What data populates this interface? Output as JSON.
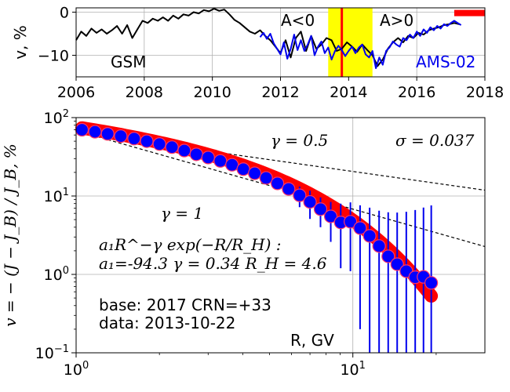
{
  "chart_data": [
    {
      "type": "line",
      "ylabel": "v, %",
      "xlim": [
        2006,
        2018
      ],
      "ylim": [
        -15,
        1
      ],
      "x_ticks": [
        "2006",
        "2008",
        "2010",
        "2012",
        "2014",
        "2016",
        "2018"
      ],
      "y_ticks": [
        "0",
        "−10"
      ],
      "grid": true,
      "annotations": {
        "left": "GSM",
        "neg": "A<0",
        "pos": "A>0",
        "ams": "AMS-02"
      },
      "shaded_span": {
        "from": 2013.4,
        "to": 2014.7,
        "color": "#ffff00"
      },
      "marker_line": {
        "x": 2013.8,
        "color": "#ff0000"
      },
      "base_bar": {
        "from": 2017.1,
        "to": 2018.0,
        "y": -0.2,
        "color": "#ff0000"
      },
      "series": [
        {
          "name": "GSM",
          "color": "#000000",
          "x": [
            2006.0,
            2006.15,
            2006.3,
            2006.45,
            2006.6,
            2006.75,
            2006.9,
            2007.05,
            2007.2,
            2007.35,
            2007.5,
            2007.65,
            2007.8,
            2007.95,
            2008.1,
            2008.25,
            2008.4,
            2008.55,
            2008.7,
            2008.85,
            2009.0,
            2009.15,
            2009.3,
            2009.45,
            2009.6,
            2009.75,
            2009.9,
            2010.05,
            2010.2,
            2010.35,
            2010.5,
            2010.65,
            2010.8,
            2010.95,
            2011.1,
            2011.25,
            2011.4,
            2011.55,
            2011.7,
            2011.85,
            2012.0,
            2012.15,
            2012.3,
            2012.45,
            2012.6,
            2012.75,
            2012.9,
            2013.05,
            2013.2,
            2013.35,
            2013.5,
            2013.65,
            2013.8,
            2013.95,
            2014.1,
            2014.25,
            2014.4,
            2014.55,
            2014.7,
            2014.85,
            2015.0,
            2015.15,
            2015.3,
            2015.45,
            2015.6,
            2015.75,
            2015.9,
            2016.05,
            2016.2,
            2016.35,
            2016.5,
            2016.65,
            2016.8,
            2016.95,
            2017.1,
            2017.25
          ],
          "y": [
            -6.5,
            -4.5,
            -5.5,
            -3.8,
            -4.8,
            -4.0,
            -5.0,
            -4.2,
            -3.2,
            -5.0,
            -3.0,
            -6.0,
            -4.0,
            -2.0,
            -2.5,
            -1.5,
            -2.0,
            -1.2,
            -2.0,
            -0.8,
            -1.5,
            -0.5,
            -0.8,
            0.0,
            -0.3,
            0.5,
            0.2,
            0.8,
            0.3,
            0.6,
            -0.5,
            -1.8,
            -2.5,
            -3.5,
            -4.5,
            -5.0,
            -4.2,
            -5.5,
            -6.5,
            -8.0,
            -9.5,
            -6.5,
            -10.5,
            -6.0,
            -4.5,
            -9.0,
            -5.5,
            -8.5,
            -7.5,
            -6.0,
            -6.5,
            -9.0,
            -8.5,
            -7.0,
            -8.0,
            -9.2,
            -7.5,
            -8.8,
            -10.0,
            -12.5,
            -11.0,
            -8.5,
            -7.0,
            -6.0,
            -7.0,
            -5.5,
            -6.0,
            -4.8,
            -5.2,
            -4.2,
            -3.8,
            -3.5,
            -3.0,
            -2.8,
            -2.5,
            -2.8
          ]
        },
        {
          "name": "AMS-02",
          "color": "#0000ee",
          "x": [
            2011.4,
            2011.5,
            2011.6,
            2011.7,
            2011.8,
            2011.9,
            2012.0,
            2012.1,
            2012.2,
            2012.3,
            2012.4,
            2012.5,
            2012.6,
            2012.7,
            2012.8,
            2012.9,
            2013.0,
            2013.1,
            2013.2,
            2013.3,
            2013.4,
            2013.5,
            2013.6,
            2013.7,
            2013.8,
            2013.9,
            2014.0,
            2014.1,
            2014.2,
            2014.3,
            2014.4,
            2014.5,
            2014.6,
            2014.7,
            2014.8,
            2014.9,
            2015.0,
            2015.1,
            2015.2,
            2015.3,
            2015.4,
            2015.5,
            2015.6,
            2015.7,
            2015.8,
            2015.9,
            2016.0,
            2016.1,
            2016.2,
            2016.3,
            2016.4,
            2016.5,
            2016.6,
            2016.7,
            2016.8,
            2016.9,
            2017.0,
            2017.1,
            2017.2,
            2017.3
          ],
          "y": [
            -5.8,
            -4.8,
            -6.2,
            -5.0,
            -7.2,
            -8.5,
            -9.8,
            -7.0,
            -10.8,
            -8.5,
            -5.2,
            -8.8,
            -6.5,
            -9.0,
            -7.5,
            -5.5,
            -10.0,
            -8.0,
            -6.8,
            -9.5,
            -8.2,
            -11.0,
            -9.0,
            -7.8,
            -8.8,
            -10.2,
            -9.0,
            -8.0,
            -9.5,
            -8.2,
            -7.5,
            -9.8,
            -10.5,
            -9.0,
            -13.0,
            -10.5,
            -12.2,
            -9.0,
            -8.2,
            -6.8,
            -7.5,
            -8.0,
            -6.0,
            -6.5,
            -5.2,
            -6.0,
            -4.5,
            -5.5,
            -4.0,
            -4.8,
            -3.5,
            -4.2,
            -3.2,
            -3.8,
            -2.8,
            -3.2,
            -2.5,
            -2.0,
            -2.5,
            -3.0
          ]
        }
      ]
    },
    {
      "type": "scatter",
      "xlabel": "R, GV",
      "ylabel": "v = − (J − J_B) / J_B, %",
      "xscale": "log",
      "yscale": "log",
      "xlim": [
        1,
        30
      ],
      "ylim": [
        0.1,
        100
      ],
      "x_ticks": [
        {
          "value": 1,
          "base": "10",
          "exp": "0"
        },
        {
          "value": 10,
          "base": "10",
          "exp": "1"
        }
      ],
      "y_ticks": [
        {
          "value": 0.1,
          "base": "10",
          "exp": "−1"
        },
        {
          "value": 1,
          "base": "10",
          "exp": "0"
        },
        {
          "value": 10,
          "base": "10",
          "exp": "1"
        },
        {
          "value": 100,
          "base": "10",
          "exp": "2"
        }
      ],
      "grid": true,
      "annotations": {
        "gamma_half": "γ = 0.5",
        "sigma": "σ = 0.037",
        "gamma_one": "γ = 1",
        "fit_formula": "a₁R^−γ exp(−R/R_H) :",
        "fit_params": "a₁=-94.3  γ = 0.34  R_H =  4.6",
        "base_line": "base: 2017   CRN=+33",
        "data_line": "data: 2013-10-22"
      },
      "reference_lines": [
        {
          "label": "γ = 0.5",
          "slope": -0.5,
          "x0": 1,
          "y0": 65,
          "style": "dashed"
        },
        {
          "label": "γ = 1",
          "slope": -1.0,
          "x0": 1,
          "y0": 68,
          "style": "dashed"
        }
      ],
      "fit": {
        "a1": -94.3,
        "gamma": 0.34,
        "R_H": 4.6,
        "color": "#ff0000"
      },
      "series": [
        {
          "marker_color": "#0000ff",
          "edge_color": "#ff3366",
          "x": [
            1.05,
            1.17,
            1.3,
            1.45,
            1.62,
            1.8,
            2.0,
            2.22,
            2.46,
            2.72,
            3.0,
            3.32,
            3.66,
            4.02,
            4.42,
            4.86,
            5.34,
            5.86,
            6.42,
            7.0,
            7.64,
            8.32,
            9.04,
            9.8,
            10.62,
            11.5,
            12.44,
            13.42,
            14.46,
            15.6,
            16.8,
            18.0,
            19.2
          ],
          "y": [
            70,
            66,
            62,
            58,
            54,
            50,
            46,
            42,
            38,
            34,
            31,
            28,
            25,
            22,
            19.5,
            17,
            14.5,
            12.3,
            10.2,
            8.4,
            6.8,
            5.5,
            4.6,
            4.7,
            3.9,
            3.1,
            2.3,
            1.7,
            1.35,
            1.1,
            0.92,
            0.93,
            0.78
          ],
          "err": [
            null,
            null,
            null,
            null,
            null,
            null,
            null,
            null,
            null,
            null,
            null,
            null,
            null,
            null,
            null,
            null,
            null,
            2.2,
            3.0,
            3.3,
            2.8,
            2.9,
            3.4,
            3.6,
            3.7,
            4.0,
            4.2,
            4.5,
            4.8,
            5.2,
            5.7,
            6.2,
            6.8
          ]
        }
      ]
    }
  ]
}
